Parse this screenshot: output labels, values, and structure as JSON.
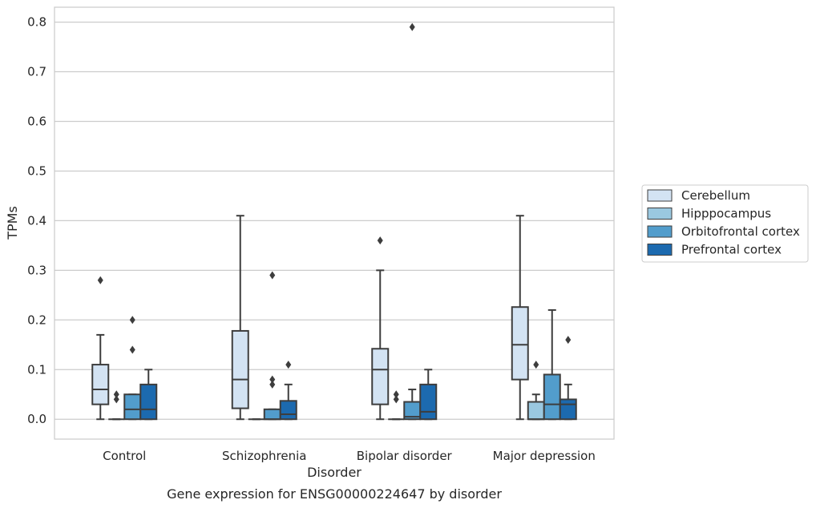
{
  "chart_data": {
    "type": "box",
    "xlabel": "Disorder",
    "ylabel": "TPMs",
    "caption": "Gene expression for ENSG00000224647 by disorder",
    "ylim": [
      -0.04,
      0.83
    ],
    "y_ticks": [
      0.0,
      0.1,
      0.2,
      0.3,
      0.4,
      0.5,
      0.6,
      0.7,
      0.8
    ],
    "y_tick_labels": [
      "0.0",
      "0.1",
      "0.2",
      "0.3",
      "0.4",
      "0.5",
      "0.6",
      "0.7",
      "0.8"
    ],
    "grid": "horizontal",
    "legend_position": "right",
    "categories": [
      "Control",
      "Schizophrenia",
      "Bipolar disorder",
      "Major depression"
    ],
    "series": [
      {
        "name": "Cerebellum",
        "color": "#d3e3f3",
        "boxes": [
          {
            "whislo": 0.0,
            "q1": 0.03,
            "med": 0.06,
            "q3": 0.11,
            "whishi": 0.17,
            "fliers": [
              0.28
            ]
          },
          {
            "whislo": 0.0,
            "q1": 0.022,
            "med": 0.08,
            "q3": 0.178,
            "whishi": 0.41,
            "fliers": []
          },
          {
            "whislo": 0.0,
            "q1": 0.03,
            "med": 0.1,
            "q3": 0.142,
            "whishi": 0.3,
            "fliers": [
              0.36
            ]
          },
          {
            "whislo": 0.0,
            "q1": 0.08,
            "med": 0.15,
            "q3": 0.226,
            "whishi": 0.41,
            "fliers": []
          }
        ]
      },
      {
        "name": "Hipppocampus",
        "color": "#9ac8e0",
        "boxes": [
          {
            "whislo": 0.0,
            "q1": 0.0,
            "med": 0.0,
            "q3": 0.0,
            "whishi": 0.0,
            "fliers": [
              0.04,
              0.05
            ]
          },
          {
            "whislo": 0.0,
            "q1": 0.0,
            "med": 0.0,
            "q3": 0.0,
            "whishi": 0.0,
            "fliers": []
          },
          {
            "whislo": 0.0,
            "q1": 0.0,
            "med": 0.0,
            "q3": 0.0,
            "whishi": 0.0,
            "fliers": [
              0.04,
              0.05
            ]
          },
          {
            "whislo": 0.0,
            "q1": 0.0,
            "med": 0.0,
            "q3": 0.035,
            "whishi": 0.05,
            "fliers": [
              0.11
            ]
          }
        ]
      },
      {
        "name": "Orbitofrontal cortex",
        "color": "#529dcc",
        "boxes": [
          {
            "whislo": 0.0,
            "q1": 0.0,
            "med": 0.02,
            "q3": 0.05,
            "whishi": 0.05,
            "fliers": [
              0.14,
              0.2
            ]
          },
          {
            "whislo": 0.0,
            "q1": 0.0,
            "med": 0.0,
            "q3": 0.02,
            "whishi": 0.02,
            "fliers": [
              0.07,
              0.08,
              0.29
            ]
          },
          {
            "whislo": 0.0,
            "q1": 0.0,
            "med": 0.005,
            "q3": 0.035,
            "whishi": 0.06,
            "fliers": [
              0.79
            ]
          },
          {
            "whislo": 0.0,
            "q1": 0.0,
            "med": 0.03,
            "q3": 0.09,
            "whishi": 0.22,
            "fliers": []
          }
        ]
      },
      {
        "name": "Prefrontal cortex",
        "color": "#1c6aaf",
        "boxes": [
          {
            "whislo": 0.0,
            "q1": 0.0,
            "med": 0.02,
            "q3": 0.07,
            "whishi": 0.1,
            "fliers": []
          },
          {
            "whislo": 0.0,
            "q1": 0.0,
            "med": 0.01,
            "q3": 0.037,
            "whishi": 0.07,
            "fliers": [
              0.11
            ]
          },
          {
            "whislo": 0.0,
            "q1": 0.0,
            "med": 0.015,
            "q3": 0.07,
            "whishi": 0.1,
            "fliers": []
          },
          {
            "whislo": 0.0,
            "q1": 0.0,
            "med": 0.03,
            "q3": 0.04,
            "whishi": 0.07,
            "fliers": [
              0.16
            ]
          }
        ]
      }
    ]
  }
}
